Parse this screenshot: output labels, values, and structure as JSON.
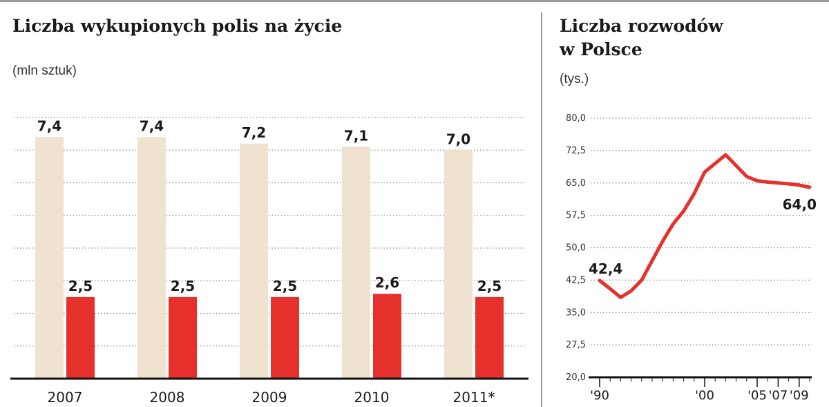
{
  "chart_data": [
    {
      "type": "bar",
      "title": "Liczba wykupionych polis na życie",
      "unit": "(mln sztuk)",
      "categories": [
        "2007",
        "2008",
        "2009",
        "2010",
        "2011*"
      ],
      "series": [
        {
          "values": [
            7.4,
            7.4,
            7.2,
            7.1,
            7.0
          ],
          "labels": [
            "7,4",
            "7,4",
            "7,2",
            "7,1",
            "7,0"
          ],
          "color": "#efe2cf"
        },
        {
          "values": [
            2.5,
            2.5,
            2.5,
            2.6,
            2.5
          ],
          "labels": [
            "2,5",
            "2,5",
            "2,5",
            "2,6",
            "2,5"
          ],
          "color": "#e5302c"
        }
      ],
      "ylim": [
        0,
        8
      ],
      "grid": true
    },
    {
      "type": "line",
      "title": "Liczba rozwodów w Polsce",
      "title_lines": [
        "Liczba rozwodów",
        "w Polsce"
      ],
      "unit": "(tys.)",
      "x": [
        1990,
        1991,
        1992,
        1993,
        1994,
        1995,
        1996,
        1997,
        1998,
        1999,
        2000,
        2001,
        2002,
        2003,
        2004,
        2005,
        2006,
        2007,
        2008,
        2009,
        2010
      ],
      "y": [
        42.4,
        40.5,
        38.5,
        40.0,
        42.5,
        47.0,
        51.5,
        55.5,
        58.5,
        62.5,
        67.5,
        69.5,
        71.5,
        69.0,
        66.5,
        65.5,
        65.2,
        65.0,
        64.8,
        64.5,
        64.0
      ],
      "xticks": [
        1990,
        2000,
        2005,
        2007,
        2009
      ],
      "xtick_labels": [
        "'90",
        "'00",
        "'05",
        "'07",
        "'09"
      ],
      "yticks": [
        20.0,
        27.5,
        35.0,
        42.5,
        50.0,
        57.5,
        65.0,
        72.5,
        80.0
      ],
      "ytick_labels": [
        "20,0",
        "27,5",
        "35,0",
        "42,5",
        "50,0",
        "57,5",
        "65,0",
        "72,5",
        "80,0"
      ],
      "ylim": [
        20,
        80
      ],
      "annotations": [
        {
          "x": 1990,
          "y": 42.4,
          "text": "42,4"
        },
        {
          "x": 2010,
          "y": 64.0,
          "text": "64,0"
        }
      ],
      "color": "#e5302c",
      "grid": true
    }
  ]
}
